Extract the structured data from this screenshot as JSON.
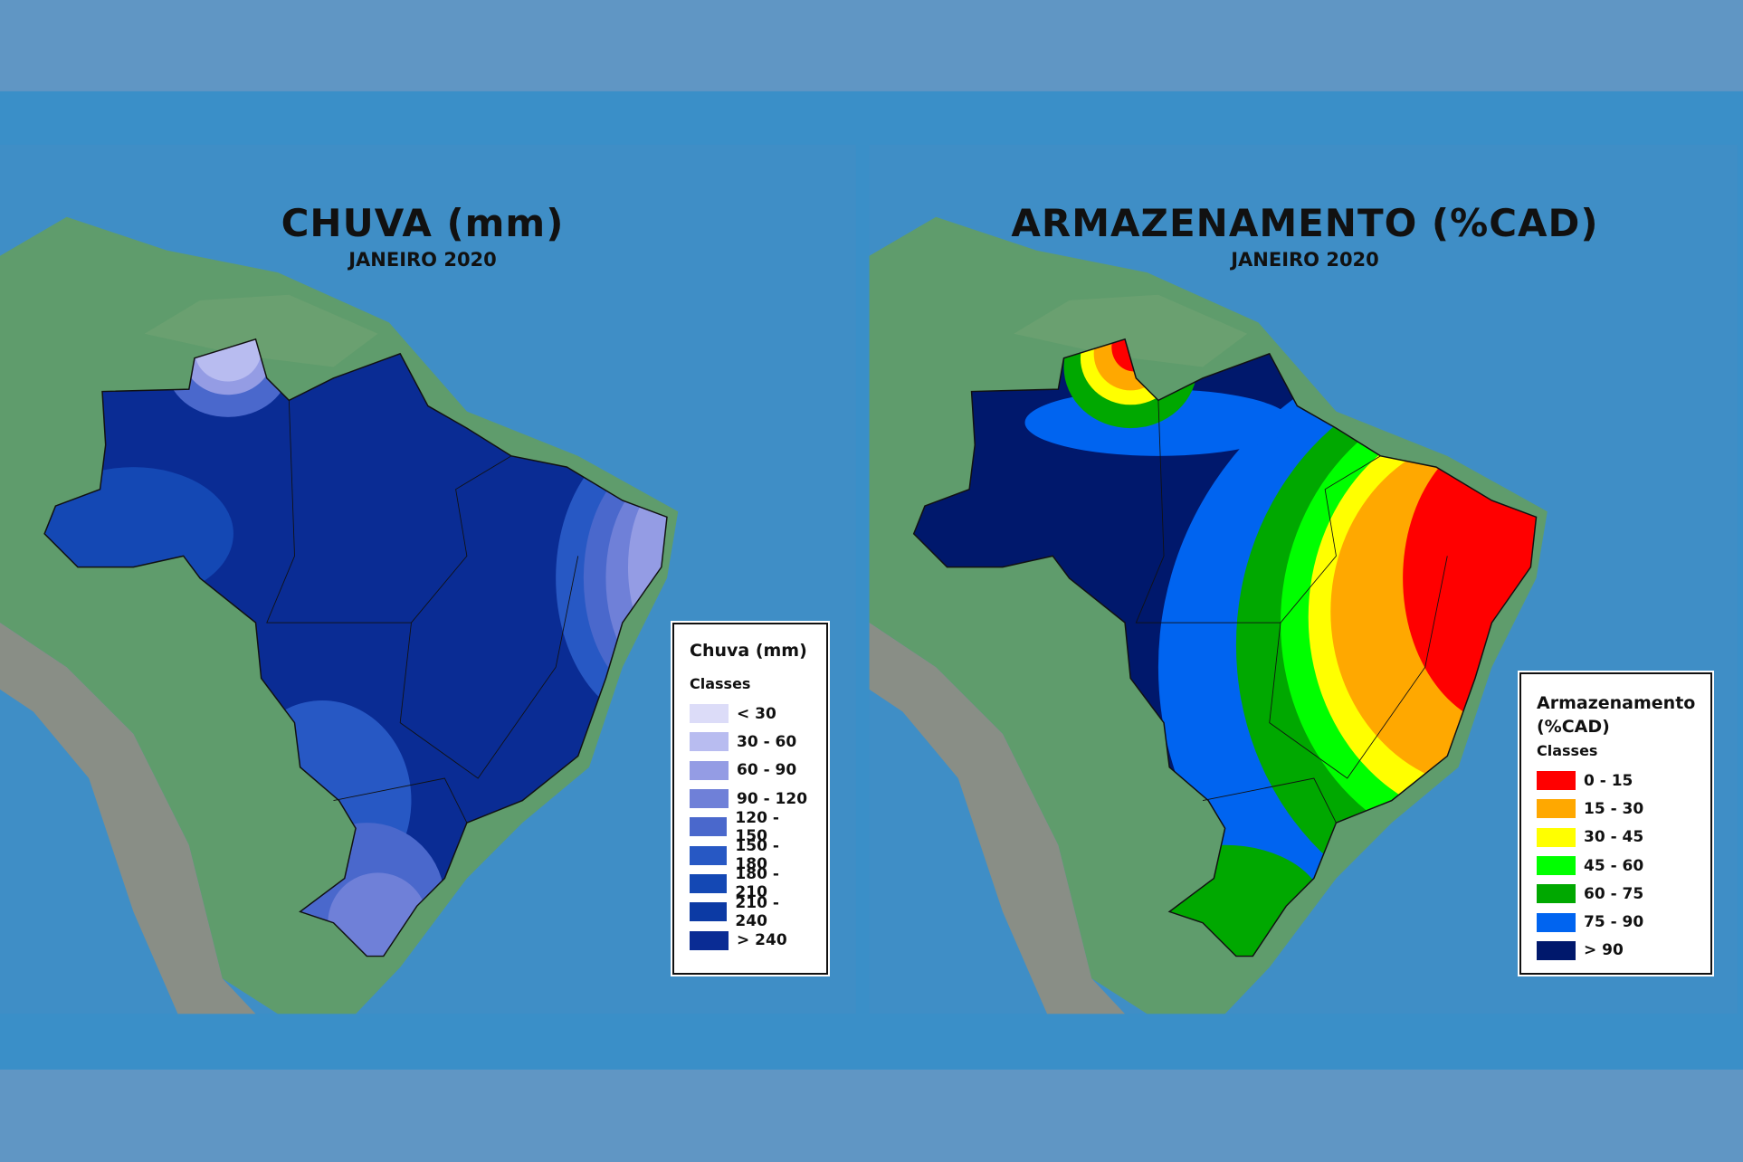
{
  "maps": [
    {
      "title": "CHUVA (mm)",
      "subtitle": "JANEIRO 2020",
      "legend": {
        "title": "Chuva (mm)",
        "subtitle": "Classes",
        "items": [
          {
            "label": "< 30",
            "color": "#dcdcf8"
          },
          {
            "label": "30 - 60",
            "color": "#b8bcf0"
          },
          {
            "label": "60 - 90",
            "color": "#949ce4"
          },
          {
            "label": "90 - 120",
            "color": "#6f80d8"
          },
          {
            "label": "120 - 150",
            "color": "#4a68cc"
          },
          {
            "label": "150 - 180",
            "color": "#2758c4"
          },
          {
            "label": "180 - 210",
            "color": "#1448b4"
          },
          {
            "label": "210 - 240",
            "color": "#0c3aa4"
          },
          {
            "label": "> 240",
            "color": "#0a2c94"
          }
        ]
      }
    },
    {
      "title": "ARMAZENAMENTO (%CAD)",
      "subtitle": "JANEIRO 2020",
      "legend": {
        "title": "Armazenamento (%CAD)",
        "subtitle": "Classes",
        "items": [
          {
            "label": "0 - 15",
            "color": "#ff0000"
          },
          {
            "label": "15 - 30",
            "color": "#ffa800"
          },
          {
            "label": "30 - 45",
            "color": "#ffff00"
          },
          {
            "label": "45 - 60",
            "color": "#00ff00"
          },
          {
            "label": "60 - 75",
            "color": "#00a800"
          },
          {
            "label": "75 - 90",
            "color": "#0064f0"
          },
          {
            "label": "> 90",
            "color": "#00186c"
          }
        ]
      }
    }
  ]
}
